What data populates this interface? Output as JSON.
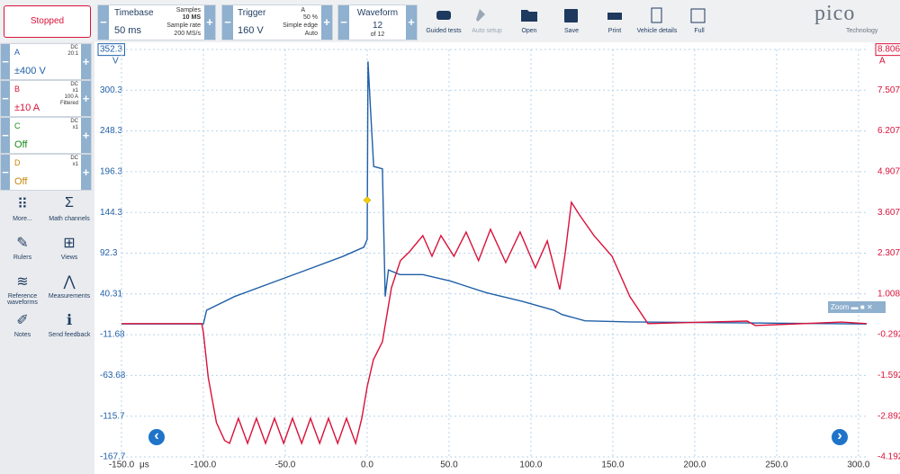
{
  "toolbar": {
    "status": "Stopped",
    "timebase": {
      "label": "Timebase",
      "value": "50 ms",
      "samples_label": "Samples",
      "samples": "10 MS",
      "rate_label": "Sample rate",
      "rate": "200 MS/s"
    },
    "trigger": {
      "label": "Trigger",
      "channel": "A",
      "percent": "50 %",
      "mode": "Simple edge",
      "auto": "Auto",
      "level": "160 V"
    },
    "waveform": {
      "label": "Waveform",
      "index": "12",
      "total": "of 12"
    },
    "buttons": [
      "Guided tests",
      "Auto setup",
      "Open",
      "Save",
      "Print",
      "Vehicle details",
      "Full"
    ],
    "logo": "pico",
    "logo_sub": "Technology"
  },
  "channels": [
    {
      "name": "A",
      "info": [
        "DC",
        "20:1"
      ],
      "range": "±400 V"
    },
    {
      "name": "B",
      "info": [
        "DC",
        "x1",
        "100 A",
        "Filtered"
      ],
      "range": "±10 A"
    },
    {
      "name": "C",
      "info": [
        "DC",
        "x1"
      ],
      "range": "Off"
    },
    {
      "name": "D",
      "info": [
        "DC",
        "x1"
      ],
      "range": "Off"
    }
  ],
  "tools": [
    "More...",
    "Math channels",
    "Rulers",
    "Views",
    "Reference waveforms",
    "Measurements",
    "Notes",
    "Send feedback"
  ],
  "zoom": "Zoom",
  "chart_data": {
    "type": "line",
    "grid": true,
    "y_unit": "V",
    "y2_unit": "A",
    "x_unit": "μs",
    "xlim": [
      -150,
      305
    ],
    "xticks": [
      {
        "value": -150,
        "label": "-150.0"
      },
      {
        "value": -100,
        "label": "-100.0"
      },
      {
        "value": -50,
        "label": "-50.0"
      },
      {
        "value": 0,
        "label": "0.0"
      },
      {
        "value": 50,
        "label": "50.0"
      },
      {
        "value": 100,
        "label": "100.0"
      },
      {
        "value": 150,
        "label": "150.0"
      },
      {
        "value": 200,
        "label": "200.0"
      },
      {
        "value": 250,
        "label": "250.0"
      },
      {
        "value": 300,
        "label": "300.0"
      }
    ],
    "ylim": [
      -167.7,
      352.3
    ],
    "yticks": [
      352.3,
      300.3,
      248.3,
      196.3,
      144.3,
      92.3,
      40.31,
      -11.68,
      -63.68,
      -115.7,
      -167.7
    ],
    "y2lim": [
      -4.192,
      8.806
    ],
    "y2ticks": [
      8.806,
      7.507,
      6.207,
      4.907,
      3.607,
      2.307,
      1.008,
      -0.292,
      -1.592,
      -2.892,
      -4.192
    ],
    "series": [
      {
        "color": "#1f5fa8",
        "axis": "y",
        "x": [
          -150,
          -100,
          -98,
          -81,
          -59,
          -37,
          -15,
          -2,
          0,
          0.5,
          2,
          4,
          9.3,
          11,
          13,
          20,
          34,
          50.5,
          72.5,
          94.5,
          114,
          119,
          133,
          160,
          305
        ],
        "values": [
          2,
          2,
          19.5,
          37,
          54,
          71,
          88,
          100,
          110,
          337,
          278,
          203,
          200,
          37,
          71,
          65,
          65,
          57,
          42,
          31,
          19.5,
          14,
          6,
          4.6,
          2
        ]
      },
      {
        "color": "#d9123a",
        "axis": "y2",
        "x": [
          -150,
          -101,
          -100,
          -97,
          -92,
          -87,
          -84,
          -78.6,
          -73,
          -67.6,
          -62,
          -56.6,
          -51,
          -45.6,
          -40,
          -34.6,
          -29,
          -23.6,
          -18,
          -12.6,
          -7,
          -3.3,
          0,
          3.8,
          9.3,
          14.8,
          20.3,
          25.8,
          34,
          39.6,
          45,
          53,
          60.4,
          68,
          75.3,
          84.6,
          93.4,
          102.7,
          110,
          117.6,
          121,
          124.7,
          130,
          138.5,
          149.5,
          160.4,
          171.4,
          232,
          237,
          289.6,
          305
        ],
        "values": [
          0.06,
          0.06,
          -0.23,
          -1.66,
          -3.1,
          -3.67,
          -3.76,
          -2.96,
          -3.76,
          -2.96,
          -3.76,
          -2.96,
          -3.76,
          -2.96,
          -3.76,
          -2.96,
          -3.76,
          -2.96,
          -3.76,
          -2.96,
          -3.76,
          -2.96,
          -1.95,
          -1.09,
          -0.52,
          1.2,
          2.07,
          2.35,
          2.87,
          2.21,
          2.87,
          2.21,
          2.98,
          2.07,
          3.07,
          2.01,
          2.98,
          1.84,
          2.7,
          1.15,
          2.35,
          3.93,
          3.5,
          2.87,
          2.21,
          0.92,
          0.06,
          0.14,
          0,
          0.11,
          0.06
        ]
      }
    ],
    "trigger_marker": {
      "x": 0,
      "y": 160
    }
  }
}
